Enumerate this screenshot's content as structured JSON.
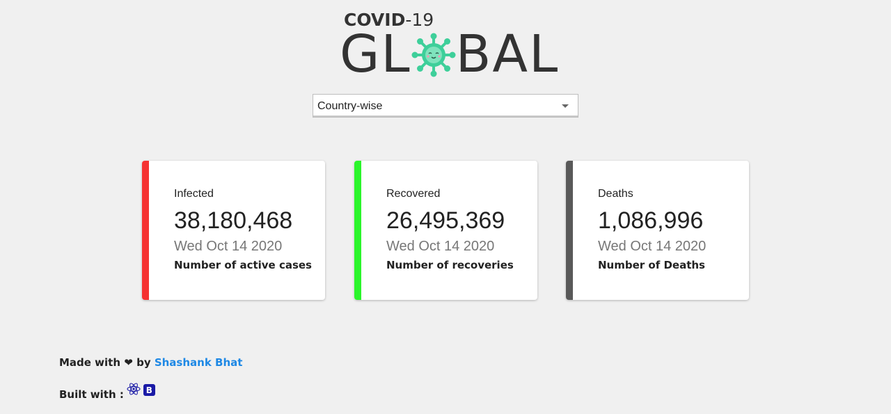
{
  "logo": {
    "top_bold": "COVID",
    "top_rest": "-19",
    "bottom_left": "GL",
    "bottom_right": "BAL",
    "virus_icon": "virus-face-icon",
    "virus_color": "#3ecf9a"
  },
  "select": {
    "value": "Country-wise"
  },
  "cards": [
    {
      "label": "Infected",
      "value": "38,180,468",
      "date": "Wed Oct 14 2020",
      "desc": "Number of active cases",
      "color": "#f53131"
    },
    {
      "label": "Recovered",
      "value": "26,495,369",
      "date": "Wed Oct 14 2020",
      "desc": "Number of recoveries",
      "color": "#2bf52b"
    },
    {
      "label": "Deaths",
      "value": "1,086,996",
      "date": "Wed Oct 14 2020",
      "desc": "Number of Deaths",
      "color": "#595959"
    }
  ],
  "footer": {
    "made_prefix": "Made with",
    "heart": "❤",
    "by": "by",
    "author": "Shashank Bhat",
    "built_with": "Built with :",
    "react_icon": "react-icon",
    "bootstrap_icon": "bootstrap-icon",
    "bootstrap_letter": "B"
  }
}
